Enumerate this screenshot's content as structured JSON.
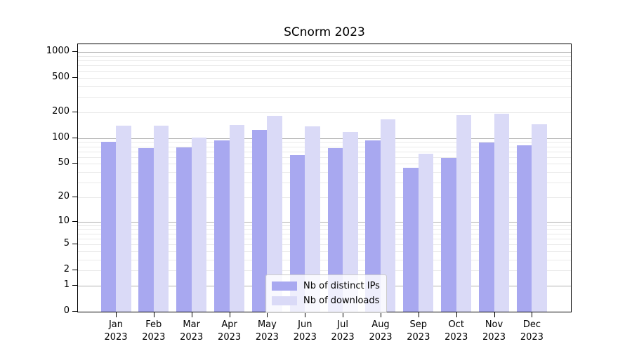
{
  "chart_data": {
    "type": "bar",
    "title": "SCnorm 2023",
    "x_axis": {
      "months": [
        "Jan",
        "Feb",
        "Mar",
        "Apr",
        "May",
        "Jun",
        "Jul",
        "Aug",
        "Sep",
        "Oct",
        "Nov",
        "Dec"
      ],
      "year": "2023"
    },
    "series": [
      {
        "name": "Nb of distinct IPs",
        "color": "#a8a8f0",
        "values": [
          90,
          76,
          78,
          94,
          125,
          63,
          77,
          94,
          45,
          59,
          89,
          83
        ]
      },
      {
        "name": "Nb of downloads",
        "color": "#dadaf7",
        "values": [
          140,
          139,
          102,
          142,
          182,
          138,
          119,
          167,
          66,
          187,
          193,
          144
        ]
      }
    ],
    "y_axis": {
      "scale": "log1p",
      "tick_labels": [
        "1000",
        "500",
        "200",
        "100",
        "50",
        "20",
        "10",
        "5",
        "2",
        "1",
        "0"
      ],
      "range": [
        0,
        1220
      ],
      "grid": "on",
      "grid_major_at": [
        1,
        10,
        100,
        1000
      ]
    },
    "legend": {
      "position": "lower center",
      "entries": [
        "Nb of distinct IPs",
        "Nb of downloads"
      ]
    }
  },
  "colors": {
    "bar_distinct_ips": "#a8a8f0",
    "bar_downloads": "#dadaf7",
    "grid_major": "#b0b0b0",
    "grid_minor": "#e9e9e9",
    "spine": "#000000",
    "legend_border": "#cccccc"
  }
}
